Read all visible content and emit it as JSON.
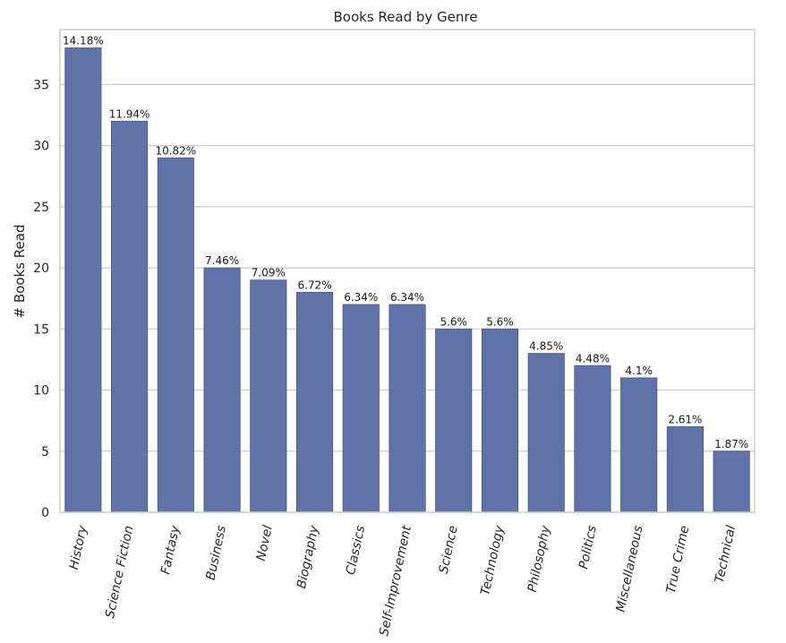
{
  "chart_data": {
    "type": "bar",
    "title": "Books Read by Genre",
    "xlabel": "",
    "ylabel": "# Books Read",
    "ylim": [
      0,
      39.5
    ],
    "yticks": [
      0,
      5,
      10,
      15,
      20,
      25,
      30,
      35
    ],
    "grid": "horizontal",
    "bar_color": "#5f73a8",
    "categories": [
      "History",
      "Science Fiction",
      "Fantasy",
      "Business",
      "Novel",
      "Biography",
      "Classics",
      "Self-Improvement",
      "Science",
      "Technology",
      "Philosophy",
      "Politics",
      "Miscellaneous",
      "True Crime",
      "Technical"
    ],
    "values": [
      38,
      32,
      29,
      20,
      19,
      18,
      17,
      17,
      15,
      15,
      13,
      12,
      11,
      7,
      5
    ],
    "data_labels": [
      "14.18%",
      "11.94%",
      "10.82%",
      "7.46%",
      "7.09%",
      "6.72%",
      "6.34%",
      "6.34%",
      "5.6%",
      "5.6%",
      "4.85%",
      "4.48%",
      "4.1%",
      "2.61%",
      "1.87%"
    ]
  }
}
